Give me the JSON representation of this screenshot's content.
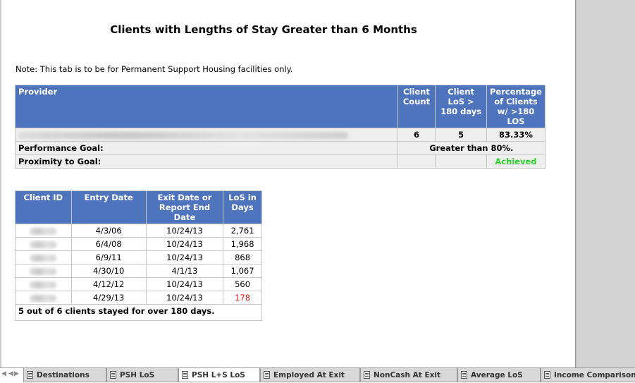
{
  "report": {
    "title": "Clients with Lengths of Stay Greater than 6 Months",
    "note": "Note: This tab is to be for Permanent Support Housing facilities only."
  },
  "summary_table": {
    "headers": {
      "provider": "Provider",
      "client_count": "Client Count",
      "client_los": "Client LoS > 180 days",
      "percentage": "Percentage of Clients w/ >180 LOS"
    },
    "row": {
      "client_count": "6",
      "client_los": "5",
      "percentage": "83.33%"
    },
    "performance_goal_label": "Performance Goal:",
    "performance_goal_value": "Greater than 80%.",
    "proximity_label": "Proximity to Goal:",
    "proximity_value": "Achieved",
    "achieved_color": "#2fd42f"
  },
  "client_table": {
    "headers": {
      "client_id": "Client ID",
      "entry_date": "Entry Date",
      "exit_date": "Exit Date or Report End Date",
      "los": "LoS in Days"
    },
    "rows": [
      {
        "entry": "4/3/06",
        "exit": "10/24/13",
        "los": "2,761"
      },
      {
        "entry": "6/4/08",
        "exit": "10/24/13",
        "los": "1,968"
      },
      {
        "entry": "6/9/11",
        "exit": "10/24/13",
        "los": "868"
      },
      {
        "entry": "4/30/10",
        "exit": "4/1/13",
        "los": "1,067"
      },
      {
        "entry": "4/12/12",
        "exit": "10/24/13",
        "los": "560"
      },
      {
        "entry": "4/29/13",
        "exit": "10/24/13",
        "los": "178"
      }
    ],
    "footer": "5 out of 6 clients stayed for over 180 days.",
    "below_threshold_color": "#e01b1b"
  },
  "sheet_tabs": [
    "Destinations",
    "PSH LoS",
    "PSH L+S LoS",
    "Employed At Exit",
    "NonCash At Exit",
    "Average LoS",
    "Income Comparison"
  ],
  "active_tab": "PSH L+S LoS"
}
